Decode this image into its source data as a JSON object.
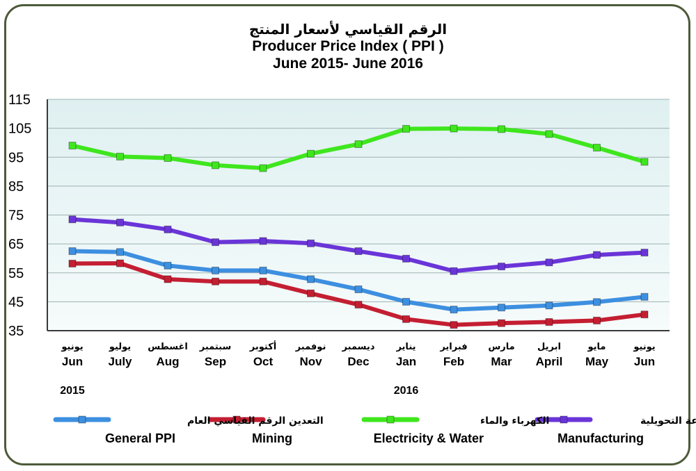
{
  "title": {
    "arabic": "الرقم القياسي لأسعار المنتج",
    "english": "Producer Price Index ( PPI )",
    "period": "June 2015-  June 2016"
  },
  "chart_data": {
    "type": "line",
    "ylim": [
      35,
      115
    ],
    "yticks": [
      35,
      45,
      55,
      65,
      75,
      85,
      95,
      105,
      115
    ],
    "grid": true,
    "legend_position": "bottom",
    "categories": [
      "Jun",
      "July",
      "Aug",
      "Sep",
      "Oct",
      "Nov",
      "Dec",
      "Jan",
      "Feb",
      "Mar",
      "April",
      "May",
      "Jun"
    ],
    "categories_ar": [
      "يونيو",
      "يوليو",
      "اغسطس",
      "سبتمبر",
      "أكتوبر",
      "نوفمبر",
      "ديسمبر",
      "يناير",
      "فبراير",
      "مارس",
      "ابريل",
      "مايو",
      "يونيو"
    ],
    "year_labels": [
      {
        "label": "2015",
        "category_index": 0
      },
      {
        "label": "2016",
        "category_index": 7
      }
    ],
    "series": [
      {
        "name": "General  PPI",
        "name_ar": "الرقم القياسي العام",
        "color": "#3d8fe0",
        "values": [
          62.5,
          62.2,
          57.5,
          55.8,
          55.8,
          52.8,
          49.3,
          45.0,
          42.3,
          43.0,
          43.7,
          44.9,
          46.7
        ]
      },
      {
        "name": "Mining",
        "name_ar": "التعدين",
        "color": "#c41e32",
        "values": [
          58.2,
          58.3,
          52.8,
          52.0,
          52.0,
          47.9,
          44.0,
          39.0,
          37.0,
          37.6,
          38.0,
          38.5,
          40.6
        ]
      },
      {
        "name": "Electricity & Water",
        "name_ar": "الكهرباء والماء",
        "color": "#3fe61e",
        "values": [
          99.0,
          95.2,
          94.7,
          92.2,
          91.2,
          96.2,
          99.5,
          104.8,
          104.9,
          104.7,
          103.0,
          98.3,
          93.4
        ]
      },
      {
        "name": "Manufacturing",
        "name_ar": "الصناعة التحويلية",
        "color": "#6a35d8",
        "values": [
          73.5,
          72.4,
          70.0,
          65.6,
          66.0,
          65.2,
          62.5,
          59.9,
          55.6,
          57.2,
          58.6,
          61.2,
          62.0
        ]
      }
    ]
  }
}
